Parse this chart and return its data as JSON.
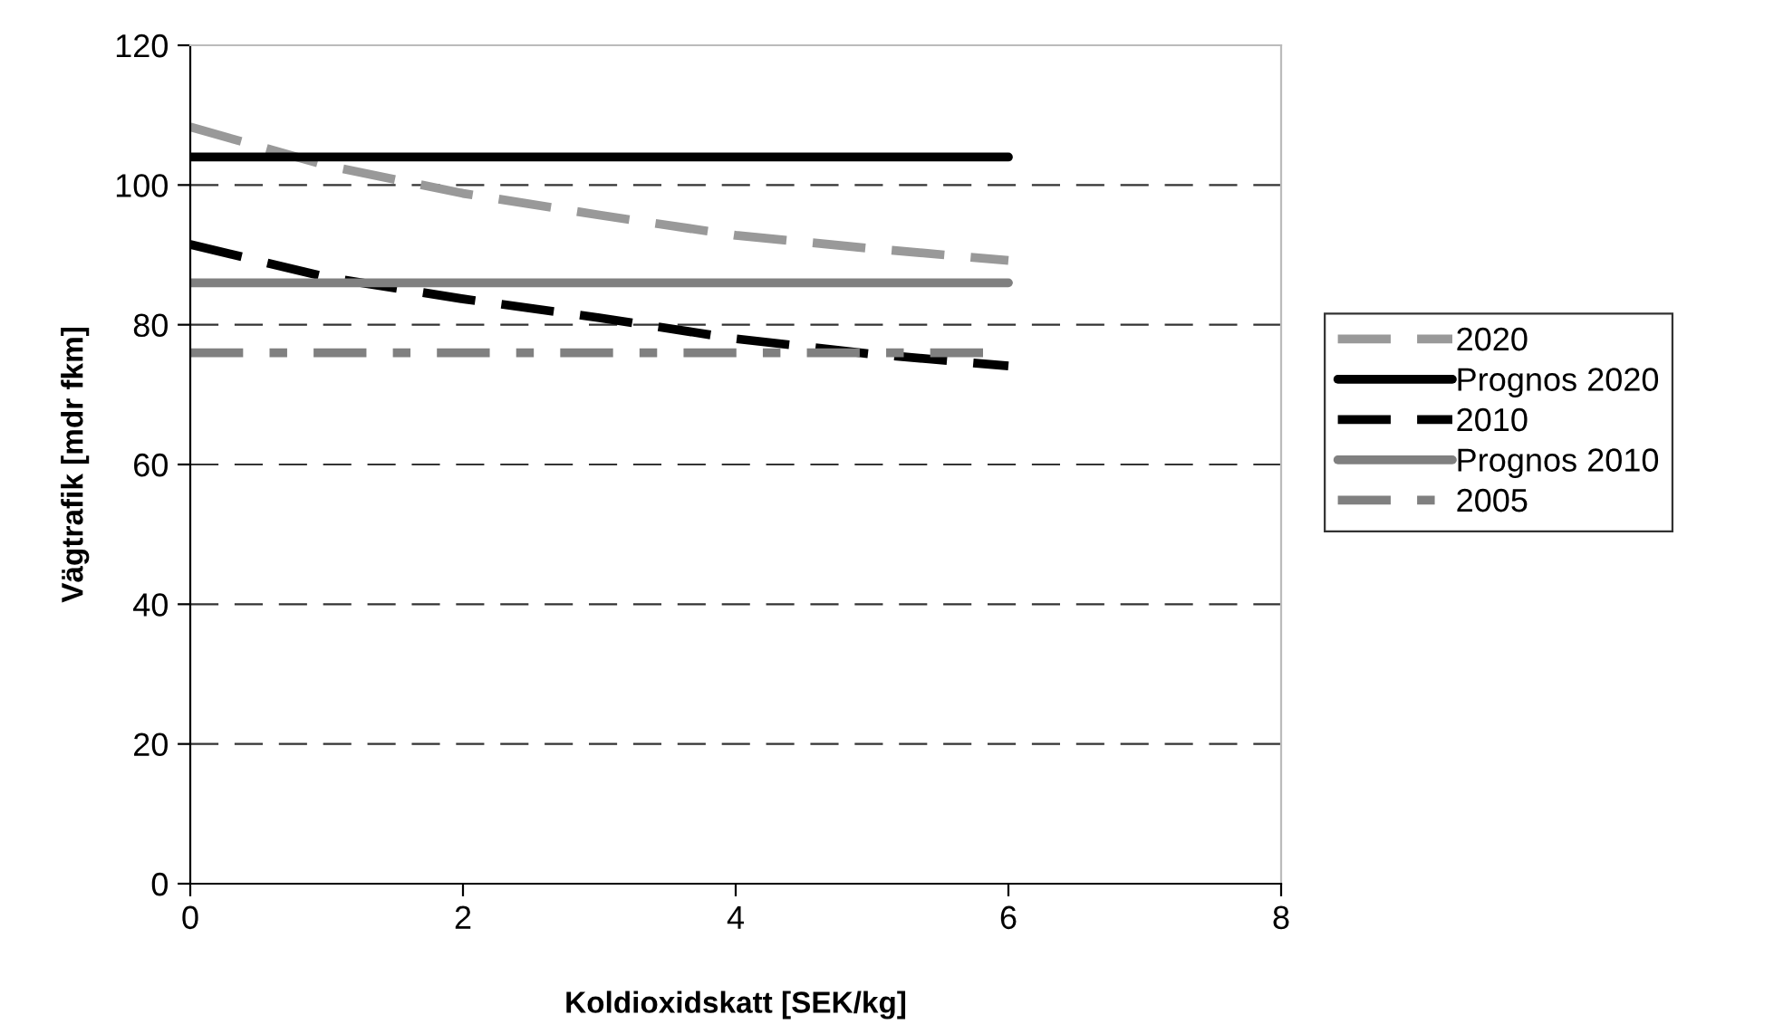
{
  "chart_data": {
    "type": "line",
    "xlabel": "Koldioxidskatt [SEK/kg]",
    "ylabel": "Vägtrafik [mdr fkm]",
    "x": [
      0,
      1,
      2,
      3,
      4,
      5,
      6
    ],
    "xlim": [
      0,
      8
    ],
    "xticks": [
      0,
      2,
      4,
      6,
      8
    ],
    "ylim": [
      0,
      120
    ],
    "yticks": [
      0,
      20,
      40,
      60,
      80,
      100,
      120
    ],
    "grid": "y",
    "legend": "right",
    "marker": "none",
    "series": [
      {
        "name": "2020",
        "color": "#999999",
        "line_style": "dashed",
        "values": [
          108.3,
          102.8,
          98.8,
          95.7,
          92.8,
          90.9,
          89.2
        ]
      },
      {
        "name": "Prognos 2020",
        "color": "#000000",
        "line_style": "solid",
        "values": [
          104,
          104,
          104,
          104,
          104,
          104,
          104
        ]
      },
      {
        "name": "2010",
        "color": "#000000",
        "line_style": "dashed",
        "values": [
          91.5,
          86.8,
          83.7,
          81,
          78,
          75.8,
          74.1
        ]
      },
      {
        "name": "Prognos 2010",
        "color": "#808080",
        "line_style": "solid",
        "values": [
          86,
          86,
          86,
          86,
          86,
          86,
          86
        ]
      },
      {
        "name": "2005",
        "color": "#808080",
        "line_style": "dotted",
        "values": [
          76,
          76,
          76,
          76,
          76,
          76,
          76
        ]
      }
    ]
  }
}
